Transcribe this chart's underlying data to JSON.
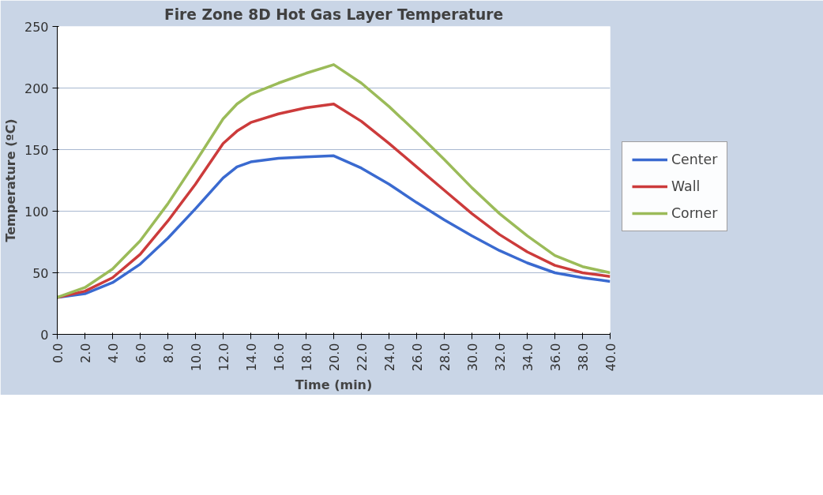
{
  "chart_data": {
    "type": "line",
    "title": "Fire Zone 8D Hot Gas Layer Temperature",
    "xlabel": "Time (min)",
    "ylabel": "Temperature (ºC)",
    "x": [
      0,
      2,
      4,
      6,
      8,
      10,
      12,
      13,
      14,
      16,
      18,
      20,
      22,
      24,
      26,
      28,
      30,
      32,
      34,
      36,
      38,
      40
    ],
    "series": [
      {
        "name": "Center",
        "color": "#3a6ad0",
        "values": [
          30,
          33,
          42,
          57,
          78,
          102,
          127,
          136,
          140,
          143,
          144,
          145,
          135,
          122,
          107,
          93,
          80,
          68,
          58,
          50,
          46,
          43
        ]
      },
      {
        "name": "Wall",
        "color": "#cc3b3b",
        "values": [
          30,
          35,
          46,
          65,
          92,
          122,
          155,
          165,
          172,
          179,
          184,
          187,
          173,
          155,
          136,
          117,
          98,
          81,
          67,
          56,
          50,
          47
        ]
      },
      {
        "name": "Corner",
        "color": "#9bbb59",
        "values": [
          30,
          38,
          53,
          76,
          106,
          140,
          175,
          187,
          195,
          204,
          212,
          219,
          204,
          185,
          164,
          142,
          119,
          98,
          80,
          64,
          55,
          50
        ]
      }
    ],
    "xlim": [
      0,
      40
    ],
    "ylim": [
      0,
      250
    ],
    "xticks": [
      {
        "value": 0,
        "label": "0.0"
      },
      {
        "value": 2,
        "label": "2.0"
      },
      {
        "value": 4,
        "label": "4.0"
      },
      {
        "value": 6,
        "label": "6.0"
      },
      {
        "value": 8,
        "label": "8.0"
      },
      {
        "value": 10,
        "label": "10.0"
      },
      {
        "value": 12,
        "label": "12.0"
      },
      {
        "value": 14,
        "label": "14.0"
      },
      {
        "value": 16,
        "label": "16.0"
      },
      {
        "value": 18,
        "label": "18.0"
      },
      {
        "value": 20,
        "label": "20.0"
      },
      {
        "value": 22,
        "label": "22.0"
      },
      {
        "value": 24,
        "label": "24.0"
      },
      {
        "value": 26,
        "label": "26.0"
      },
      {
        "value": 28,
        "label": "28.0"
      },
      {
        "value": 30,
        "label": "30.0"
      },
      {
        "value": 32,
        "label": "32.0"
      },
      {
        "value": 34,
        "label": "34.0"
      },
      {
        "value": 36,
        "label": "36.0"
      },
      {
        "value": 38,
        "label": "38.0"
      },
      {
        "value": 40,
        "label": "40.0"
      }
    ],
    "yticks": [
      0,
      50,
      100,
      150,
      200,
      250
    ],
    "grid": "y",
    "legend": "right",
    "marker": "none",
    "line_style": "solid"
  }
}
